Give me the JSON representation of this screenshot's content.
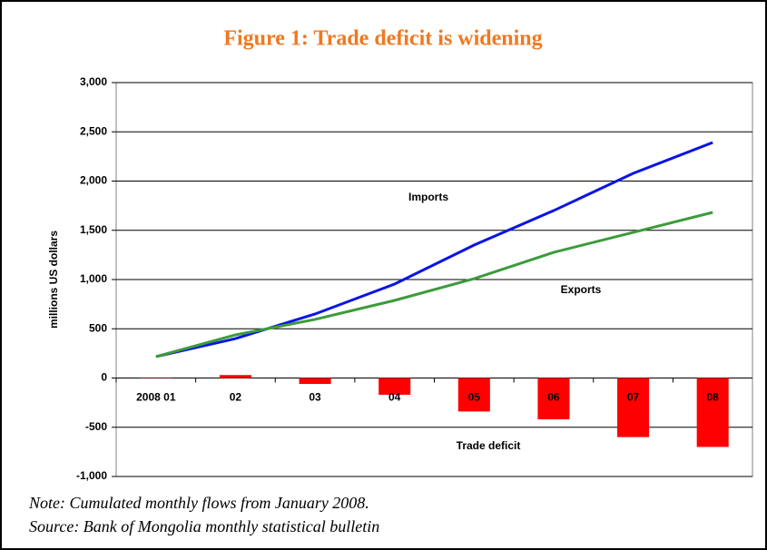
{
  "chart_data": {
    "type": "line-bar",
    "title": "Figure 1:  Trade deficit is widening",
    "y_label": "millions US dollars",
    "categories": [
      "2008 01",
      "02",
      "03",
      "04",
      "05",
      "06",
      "07",
      "08"
    ],
    "series": [
      {
        "name": "Imports",
        "type": "line",
        "color": "#0a14e6",
        "values": [
          217,
          400,
          650,
          954,
          1350,
          1700,
          2078,
          2392
        ]
      },
      {
        "name": "Exports",
        "type": "line",
        "color": "#3c9b3c",
        "values": [
          217,
          438,
          595,
          788,
          1009,
          1276,
          1479,
          1682
        ]
      },
      {
        "name": "Trade deficit",
        "type": "bar",
        "color": "#ff0000",
        "values": [
          -3,
          30,
          -60,
          -170,
          -340,
          -420,
          -600,
          -700
        ]
      }
    ],
    "ylim": [
      -1000,
      3000
    ],
    "yticks": [
      {
        "value": -1000,
        "label": "-1,000"
      },
      -500,
      0,
      500,
      {
        "value": 1000,
        "label": "1,000"
      },
      {
        "value": 1500,
        "label": "1,500"
      },
      {
        "value": 2000,
        "label": "2,000"
      },
      {
        "value": 2500,
        "label": "2,500"
      },
      {
        "value": 3000,
        "label": "3,000"
      }
    ],
    "grid": true,
    "notes": [
      "Note: Cumulated monthly flows from January 2008.",
      "Source: Bank of Mongolia monthly statistical bulletin"
    ]
  }
}
